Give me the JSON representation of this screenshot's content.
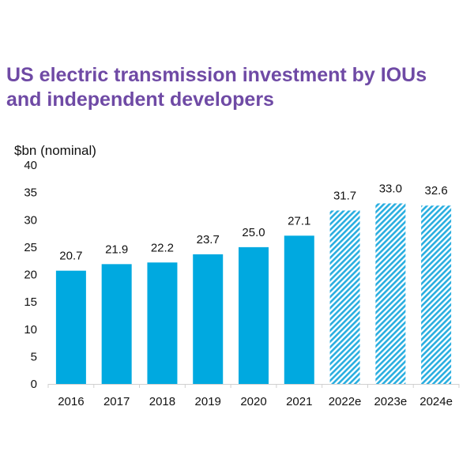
{
  "title_line1": "US electric transmission investment by IOUs",
  "title_line2": "and independent developers",
  "chart_data": {
    "type": "bar",
    "title": "US electric transmission investment by IOUs and independent developers",
    "ylabel": "$bn (nominal)",
    "xlabel": "",
    "ylim": [
      0,
      40
    ],
    "yticks": [
      0,
      5,
      10,
      15,
      20,
      25,
      30,
      35,
      40
    ],
    "categories": [
      "2016",
      "2017",
      "2018",
      "2019",
      "2020",
      "2021",
      "2022e",
      "2023e",
      "2024e"
    ],
    "values": [
      20.7,
      21.9,
      22.2,
      23.7,
      25.0,
      27.1,
      31.7,
      33.0,
      32.6
    ],
    "data_labels": [
      "20.7",
      "21.9",
      "22.2",
      "23.7",
      "25.0",
      "27.1",
      "31.7",
      "33.0",
      "32.6"
    ],
    "estimated": [
      false,
      false,
      false,
      false,
      false,
      false,
      true,
      true,
      true
    ],
    "grid": false,
    "colors": {
      "actual": "#00a9e0",
      "estimate_hatch": "#29aee0",
      "title": "#6f4aa5"
    }
  }
}
